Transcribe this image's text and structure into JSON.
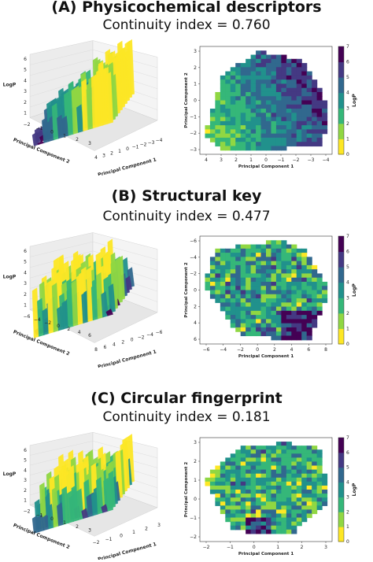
{
  "figure": {
    "colormap": [
      "#fde725",
      "#90d743",
      "#35b779",
      "#21918c",
      "#31688e",
      "#443983",
      "#440154"
    ],
    "colorbar_ticks": [
      "0",
      "1",
      "2",
      "3",
      "4",
      "5",
      "6",
      "7"
    ],
    "colorbar_label": "LogP",
    "surface_zlabel": "LogP",
    "surface_z_ticks": [
      "1",
      "2",
      "3",
      "4",
      "5",
      "6"
    ]
  },
  "panels": [
    {
      "title": "(A) Physicochemical descriptors",
      "subtitle": "Continuity index = 0.760",
      "surface": {
        "xlabel": "Principal Component 1",
        "ylabel": "Principal Component 2",
        "x_ticks": [
          "4",
          "3",
          "2",
          "1",
          "0",
          "−1",
          "−2",
          "−3",
          "−4"
        ],
        "y_ticks": [
          "−2",
          "−1",
          "0",
          "1",
          "2",
          "3"
        ]
      },
      "contour": {
        "xlabel": "Principal Component 1",
        "ylabel": "Principal Component 2",
        "x_ticks": [
          "4",
          "3",
          "2",
          "1",
          "0",
          "−1",
          "−2",
          "−3",
          "−4"
        ],
        "y_ticks": [
          "3",
          "2",
          "1",
          "0",
          "−1",
          "−2",
          "−3"
        ]
      }
    },
    {
      "title": "(B) Structural key",
      "subtitle": "Continuity index = 0.477",
      "surface": {
        "xlabel": "Principal Component 1",
        "ylabel": "Principal Component 2",
        "x_ticks": [
          "8",
          "6",
          "4",
          "2",
          "0",
          "−2",
          "−4",
          "−6"
        ],
        "y_ticks": [
          "−6",
          "−4",
          "−2",
          "0",
          "2",
          "4",
          "6"
        ]
      },
      "contour": {
        "xlabel": "Principal Component 1",
        "ylabel": "Principal Component 2",
        "x_ticks": [
          "−6",
          "−4",
          "−2",
          "0",
          "2",
          "4",
          "6",
          "8"
        ],
        "y_ticks": [
          "−6",
          "−4",
          "−2",
          "0",
          "2",
          "4",
          "6"
        ]
      }
    },
    {
      "title": "(C) Circular fingerprint",
      "subtitle": "Continuity index = 0.181",
      "surface": {
        "xlabel": "Principal Component 1",
        "ylabel": "Principal Component 2",
        "x_ticks": [
          "−2",
          "−1",
          "0",
          "1",
          "2",
          "3"
        ],
        "y_ticks": [
          "−2",
          "−1",
          "0",
          "1",
          "2",
          "3"
        ]
      },
      "contour": {
        "xlabel": "Principal Component 1",
        "ylabel": "Principal Component 2",
        "x_ticks": [
          "−2",
          "−1",
          "0",
          "1",
          "2",
          "3"
        ],
        "y_ticks": [
          "3",
          "2",
          "1",
          "0",
          "−1",
          "−2"
        ]
      }
    }
  ],
  "chart_data": [
    {
      "type": "heatmap",
      "title": "(A) Physicochemical descriptors",
      "subtitle": "Continuity index = 0.760",
      "plot": "3D surface + filled contour of LogP",
      "xlabel": "Principal Component 1",
      "ylabel": "Principal Component 2",
      "zlabel": "LogP",
      "xlim": [
        -4,
        4
      ],
      "ylim": [
        -3,
        3
      ],
      "colorbar_range": [
        0,
        7
      ],
      "continuity_index": 0.76
    },
    {
      "type": "heatmap",
      "title": "(B) Structural key",
      "subtitle": "Continuity index = 0.477",
      "plot": "3D surface + filled contour of LogP",
      "xlabel": "Principal Component 1",
      "ylabel": "Principal Component 2",
      "zlabel": "LogP",
      "xlim": [
        -6,
        8
      ],
      "ylim": [
        -6,
        6
      ],
      "colorbar_range": [
        0,
        7
      ],
      "continuity_index": 0.477
    },
    {
      "type": "heatmap",
      "title": "(C) Circular fingerprint",
      "subtitle": "Continuity index = 0.181",
      "plot": "3D surface + filled contour of LogP",
      "xlabel": "Principal Component 1",
      "ylabel": "Principal Component 2",
      "zlabel": "LogP",
      "xlim": [
        -2,
        3
      ],
      "ylim": [
        -2,
        3
      ],
      "colorbar_range": [
        0,
        7
      ],
      "continuity_index": 0.181
    }
  ]
}
